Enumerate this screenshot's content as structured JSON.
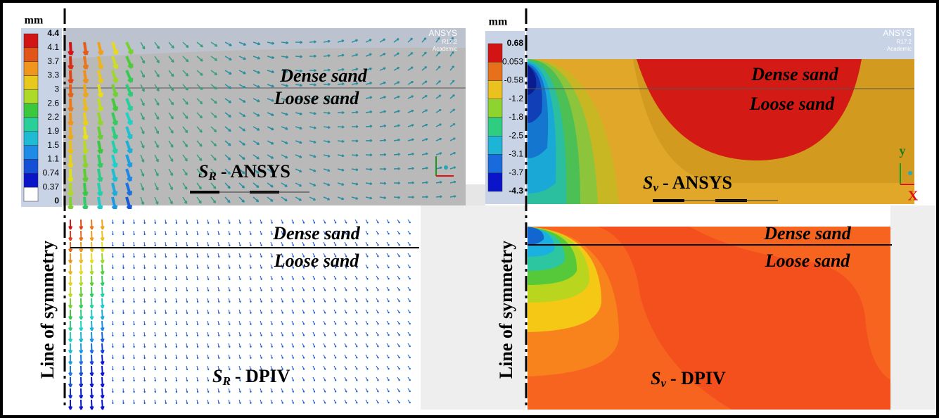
{
  "left": {
    "unit": "mm",
    "legend": [
      "4.4",
      "4.1",
      "3.7",
      "3.3",
      "3",
      "2.6",
      "2.2",
      "1.9",
      "1.5",
      "1.1",
      "0.74",
      "0.37",
      "0"
    ],
    "top": {
      "dense": "Dense sand",
      "loose": "Loose sand",
      "caption": {
        "symbol": "S",
        "subscript": "R",
        "text": "- ANSYS"
      }
    },
    "bottom": {
      "dense": "Dense sand",
      "loose": "Loose sand",
      "caption": {
        "symbol": "S",
        "subscript": "R",
        "text": "- DPIV"
      }
    },
    "axis_label": "Line of symmetry"
  },
  "right": {
    "unit": "mm",
    "legend": [
      "0.68",
      "0.053",
      "-0.58",
      "-1.2",
      "-1.8",
      "-2.5",
      "-3.1",
      "-3.7",
      "-4.3"
    ],
    "top": {
      "dense": "Dense sand",
      "loose": "Loose sand",
      "caption": {
        "symbol": "S",
        "subscript": "v",
        "text": "- ANSYS"
      },
      "axis_y": "y",
      "axis_x": "X"
    },
    "bottom": {
      "dense": "Dense sand",
      "loose": "Loose sand",
      "caption": {
        "symbol": "S",
        "subscript": "v",
        "text": "- DPIV"
      }
    },
    "axis_label": "Line of symmetry"
  },
  "ansys_logo": {
    "name": "ANSYS",
    "version": "R17.2",
    "edition": "Academic"
  }
}
